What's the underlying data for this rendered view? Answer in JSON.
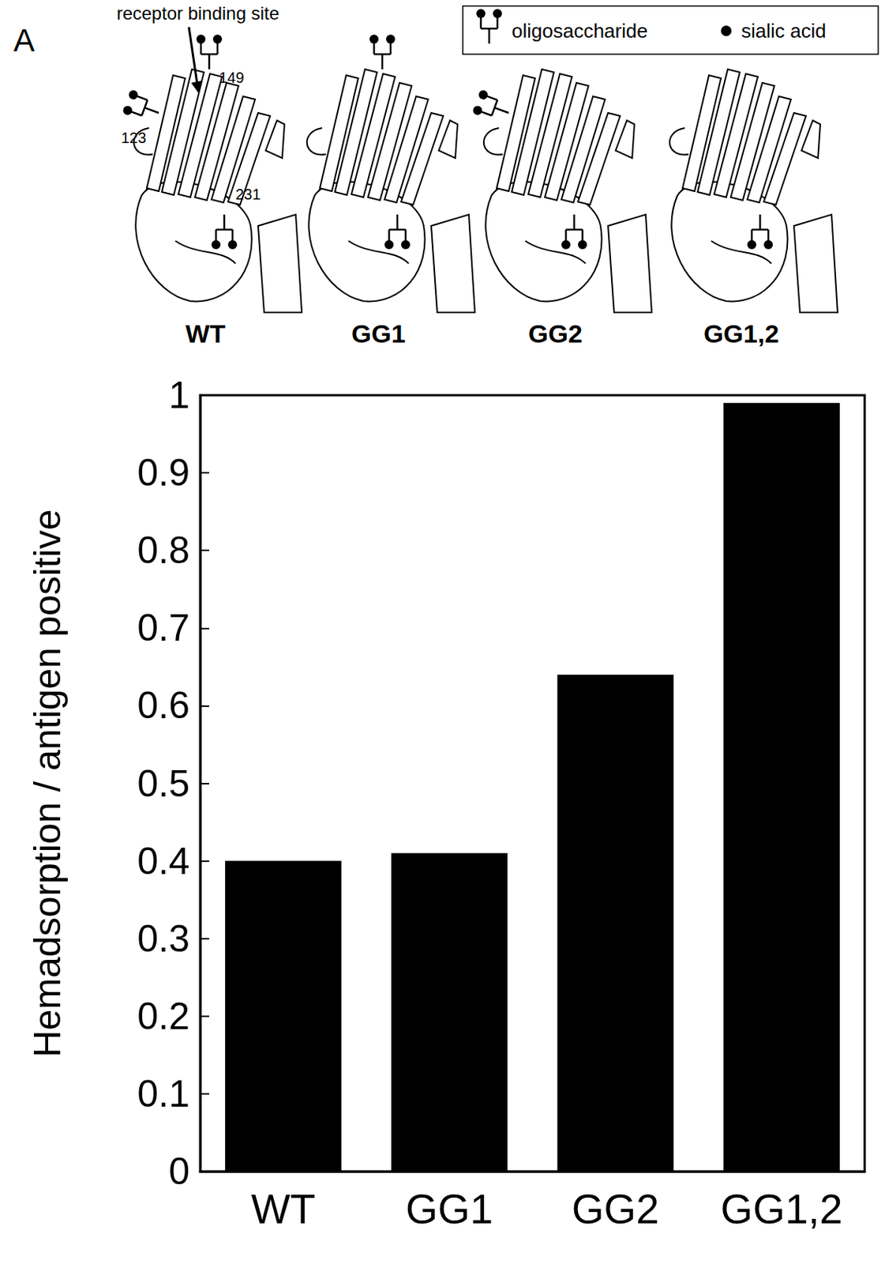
{
  "panel": "A",
  "schematic": {
    "annotation": "receptor binding site",
    "legend": {
      "oligosaccharide": "oligosaccharide",
      "sialic_acid": "sialic acid"
    },
    "panels": [
      {
        "name": "WT",
        "glycans": [
          "123",
          "149",
          "231"
        ],
        "labelled": true
      },
      {
        "name": "GG1",
        "glycans": [
          "149",
          "231"
        ],
        "labelled": false
      },
      {
        "name": "GG2",
        "glycans": [
          "123",
          "231"
        ],
        "labelled": false
      },
      {
        "name": "GG1,2",
        "glycans": [
          "231"
        ],
        "labelled": false
      }
    ]
  },
  "chart_data": {
    "type": "bar",
    "y_label": "Hemadsorption / antigen positive",
    "categories": [
      "WT",
      "GG1",
      "GG2",
      "GG1,2"
    ],
    "values": [
      0.4,
      0.41,
      0.64,
      0.99
    ],
    "color": "#000000",
    "ylim": [
      0,
      1
    ],
    "yticks": [
      0,
      0.1,
      0.2,
      0.3,
      0.4,
      0.5,
      0.6,
      0.7,
      0.8,
      0.9,
      1
    ],
    "grid": false
  }
}
